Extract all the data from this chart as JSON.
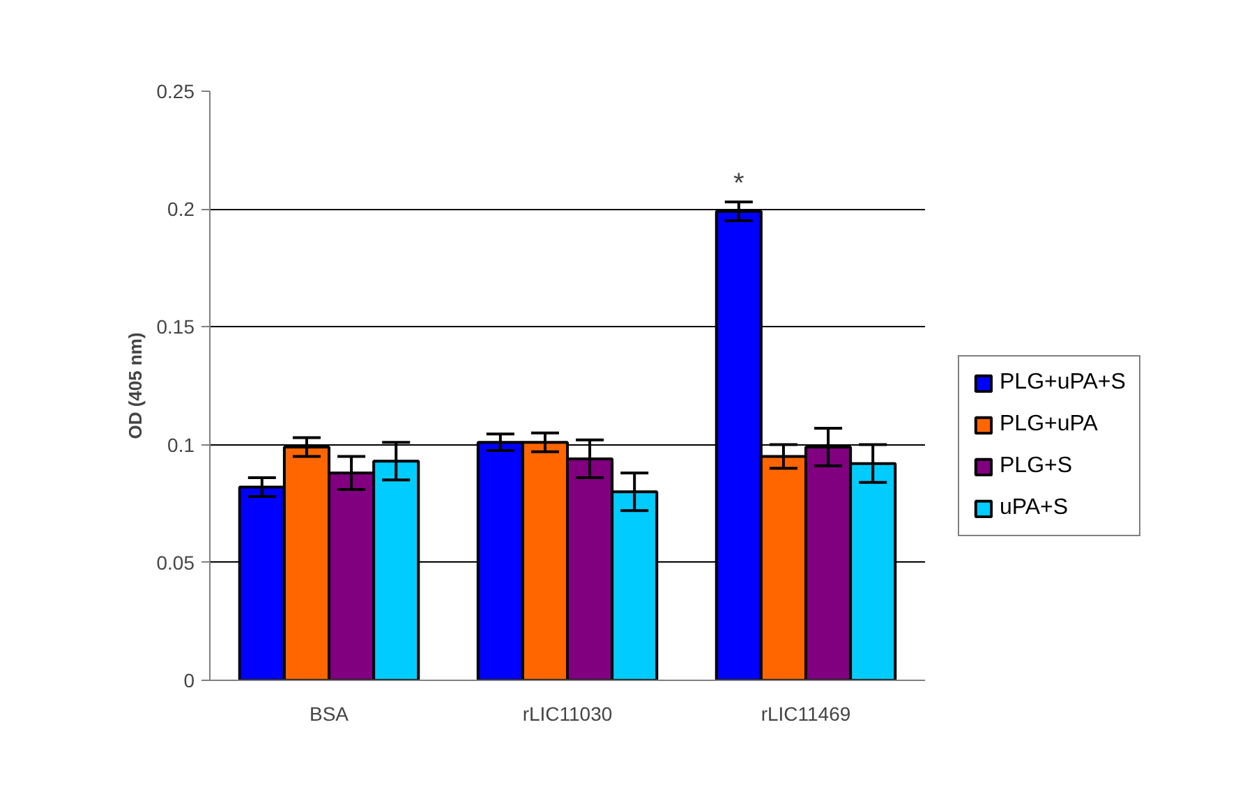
{
  "chart_data": {
    "type": "bar",
    "ylabel": "OD (405 nm)",
    "categories": [
      "BSA",
      "rLIC11030",
      "rLIC11469"
    ],
    "series": [
      {
        "name": "PLG+uPA+S",
        "color": "#0000ff",
        "values": [
          0.082,
          0.101,
          0.199
        ],
        "errors": [
          0.004,
          0.0035,
          0.004
        ]
      },
      {
        "name": "PLG+uPA",
        "color": "#ff6600",
        "values": [
          0.099,
          0.101,
          0.095
        ],
        "errors": [
          0.004,
          0.004,
          0.005
        ]
      },
      {
        "name": "PLG+S",
        "color": "#800080",
        "values": [
          0.088,
          0.094,
          0.099
        ],
        "errors": [
          0.007,
          0.008,
          0.008
        ]
      },
      {
        "name": "uPA+S",
        "color": "#00ccff",
        "values": [
          0.093,
          0.08,
          0.092
        ],
        "errors": [
          0.008,
          0.008,
          0.008
        ]
      }
    ],
    "ylim": [
      0,
      0.25
    ],
    "yticks": [
      0,
      0.05,
      0.1,
      0.15,
      0.2,
      0.25
    ],
    "grid": "y",
    "legend": "right",
    "annotations": [
      "*"
    ]
  }
}
